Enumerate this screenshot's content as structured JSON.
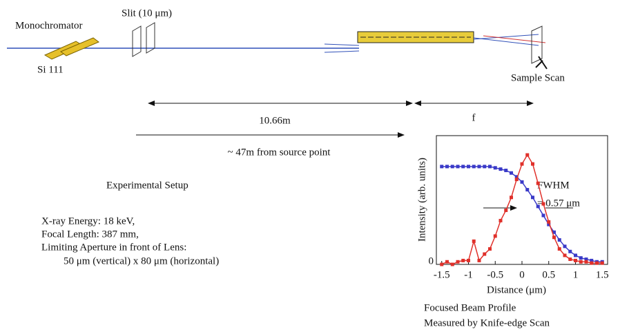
{
  "labels": {
    "monochromator": "Monochromator",
    "si111": "Si 111",
    "slit": "Slit (10 μm)",
    "sample_scan": "Sample Scan",
    "distance_lens": "10.66m",
    "focal": "f",
    "source": "~ 47m from source point",
    "setup_title": "Experimental Setup",
    "params": [
      "X-ray Energy: 18 keV,",
      "Focal Length: 387 mm,",
      "Limiting Aperture in front of Lens:",
      "50 μm (vertical) x 80 μm (horizontal)"
    ],
    "caption": [
      "Focused Beam Profile",
      "Measured by Knife-edge Scan"
    ]
  },
  "chart_data": {
    "type": "line",
    "xlabel": "Distance (μm)",
    "ylabel": "Intensity (arb. units)",
    "annotations": [
      "FWHM",
      "= 0.57 μm"
    ],
    "x": [
      -1.5,
      -1.4,
      -1.3,
      -1.2,
      -1.1,
      -1.0,
      -0.9,
      -0.8,
      -0.7,
      -0.6,
      -0.5,
      -0.4,
      -0.3,
      -0.2,
      -0.1,
      0,
      0.1,
      0.2,
      0.3,
      0.4,
      0.5,
      0.6,
      0.7,
      0.8,
      0.9,
      1.0,
      1.1,
      1.2,
      1.3,
      1.4,
      1.5
    ],
    "series": [
      {
        "color": "#3a3ac8",
        "values": [
          0.76,
          0.76,
          0.76,
          0.76,
          0.76,
          0.76,
          0.76,
          0.76,
          0.76,
          0.76,
          0.75,
          0.74,
          0.73,
          0.71,
          0.68,
          0.64,
          0.58,
          0.52,
          0.45,
          0.38,
          0.31,
          0.25,
          0.19,
          0.14,
          0.1,
          0.07,
          0.05,
          0.04,
          0.03,
          0.02,
          0.02
        ]
      },
      {
        "color": "#e0302a",
        "values": [
          0,
          0.02,
          0,
          0.02,
          0.03,
          0.03,
          0.18,
          0.03,
          0.08,
          0.12,
          0.22,
          0.34,
          0.42,
          0.52,
          0.66,
          0.78,
          0.85,
          0.78,
          0.63,
          0.47,
          0.33,
          0.21,
          0.12,
          0.07,
          0.04,
          0.03,
          0.02,
          0.02,
          0.01,
          0.01,
          0.01
        ]
      }
    ],
    "xlim": [
      -1.6,
      1.6
    ],
    "ylim": [
      0,
      1
    ],
    "xticks": [
      -1.5,
      -1,
      -0.5,
      0,
      0.5,
      1,
      1.5
    ],
    "yticks": [
      0
    ]
  }
}
